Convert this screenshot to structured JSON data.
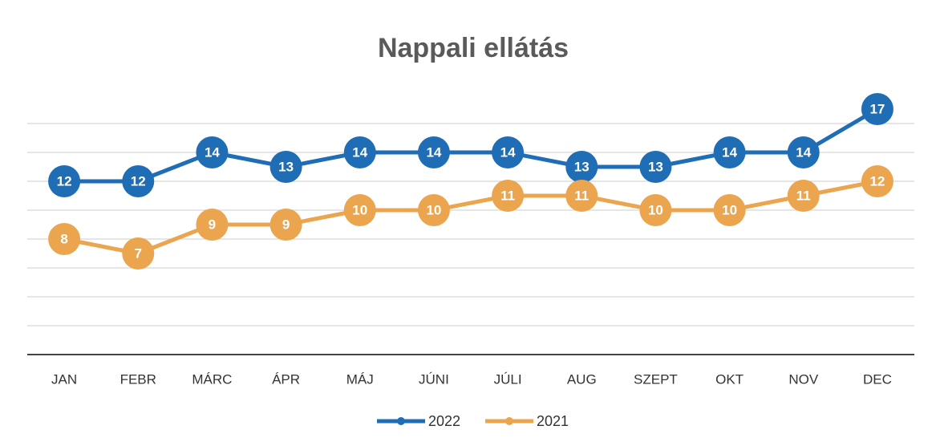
{
  "chart_data": {
    "type": "line",
    "title": "Nappali ellátás",
    "categories": [
      "JAN",
      "FEBR",
      "MÁRC",
      "ÁPR",
      "MÁJ",
      "JÚNI",
      "JÚLI",
      "AUG",
      "SZEPT",
      "OKT",
      "NOV",
      "DEC"
    ],
    "series": [
      {
        "name": "2022",
        "color": "#1f6db5",
        "values": [
          12,
          12,
          14,
          13,
          14,
          14,
          14,
          13,
          13,
          14,
          14,
          17
        ]
      },
      {
        "name": "2021",
        "color": "#eba54e",
        "values": [
          8,
          7,
          9,
          9,
          10,
          10,
          11,
          11,
          10,
          10,
          11,
          12
        ]
      }
    ],
    "ylim": [
      0,
      18
    ],
    "yticks": [
      0,
      2,
      4,
      6,
      8,
      10,
      12,
      14,
      16
    ],
    "grid": true,
    "legend": "bottom"
  }
}
